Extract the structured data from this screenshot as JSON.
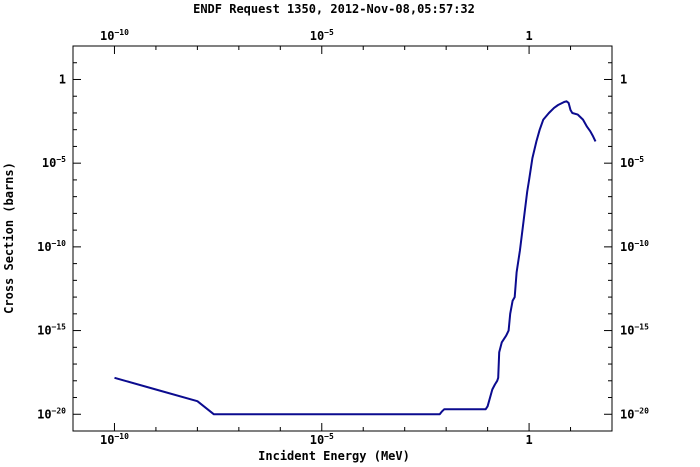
{
  "chart_data": {
    "type": "line",
    "title": "ENDF Request 1350, 2012-Nov-08,05:57:32",
    "xlabel": "Incident Energy (MeV)",
    "ylabel": "Cross Section (barns)",
    "x_scale": "log",
    "y_scale": "log",
    "xlim": [
      1e-11,
      100
    ],
    "ylim": [
      1e-21,
      100
    ],
    "grid": false,
    "x_ticks": [
      {
        "base": "10",
        "exp": "−10",
        "value": 1e-10
      },
      {
        "base": "10",
        "exp": "−5",
        "value": 1e-05
      },
      {
        "base": "1",
        "exp": "",
        "value": 1
      }
    ],
    "y_ticks": [
      {
        "base": "1",
        "exp": "",
        "value": 1
      },
      {
        "base": "10",
        "exp": "−5",
        "value": 1e-05
      },
      {
        "base": "10",
        "exp": "−10",
        "value": 1e-10
      },
      {
        "base": "10",
        "exp": "−15",
        "value": 1e-15
      },
      {
        "base": "10",
        "exp": "−20",
        "value": 1e-20
      }
    ],
    "series": [
      {
        "color": "#0b0b8f",
        "points": [
          [
            1e-10,
            1.5e-18
          ],
          [
            1e-09,
            3e-19
          ],
          [
            1e-08,
            6e-20
          ],
          [
            2.5e-08,
            1e-20
          ],
          [
            1e-07,
            1e-20
          ],
          [
            1e-06,
            1e-20
          ],
          [
            1e-05,
            1e-20
          ],
          [
            0.0001,
            1e-20
          ],
          [
            0.001,
            1e-20
          ],
          [
            0.007,
            1e-20
          ],
          [
            0.008,
            1.5e-20
          ],
          [
            0.009,
            2e-20
          ],
          [
            0.015,
            2e-20
          ],
          [
            0.05,
            2e-20
          ],
          [
            0.09,
            2e-20
          ],
          [
            0.1,
            3e-20
          ],
          [
            0.13,
            3e-19
          ],
          [
            0.15,
            6e-19
          ],
          [
            0.17,
            1e-18
          ],
          [
            0.18,
            1.5e-18
          ],
          [
            0.19,
            5e-17
          ],
          [
            0.22,
            2e-16
          ],
          [
            0.28,
            5e-16
          ],
          [
            0.32,
            1e-15
          ],
          [
            0.35,
            1e-14
          ],
          [
            0.4,
            6e-14
          ],
          [
            0.45,
            1e-13
          ],
          [
            0.5,
            3e-12
          ],
          [
            0.6,
            6e-11
          ],
          [
            0.75,
            5e-09
          ],
          [
            0.9,
            2e-07
          ],
          [
            1.0,
            1e-06
          ],
          [
            1.2,
            2e-05
          ],
          [
            1.5,
            0.0002
          ],
          [
            1.8,
            0.001
          ],
          [
            2.2,
            0.004
          ],
          [
            3.0,
            0.01
          ],
          [
            4.0,
            0.02
          ],
          [
            5.0,
            0.03
          ],
          [
            7.0,
            0.045
          ],
          [
            8.0,
            0.05
          ],
          [
            9.0,
            0.04
          ],
          [
            10.0,
            0.015
          ],
          [
            11.0,
            0.01
          ],
          [
            15.0,
            0.008
          ],
          [
            20.0,
            0.004
          ],
          [
            25.0,
            0.0015
          ],
          [
            30.0,
            0.0008
          ],
          [
            35.0,
            0.0004
          ],
          [
            40.0,
            0.0002
          ]
        ]
      }
    ]
  }
}
